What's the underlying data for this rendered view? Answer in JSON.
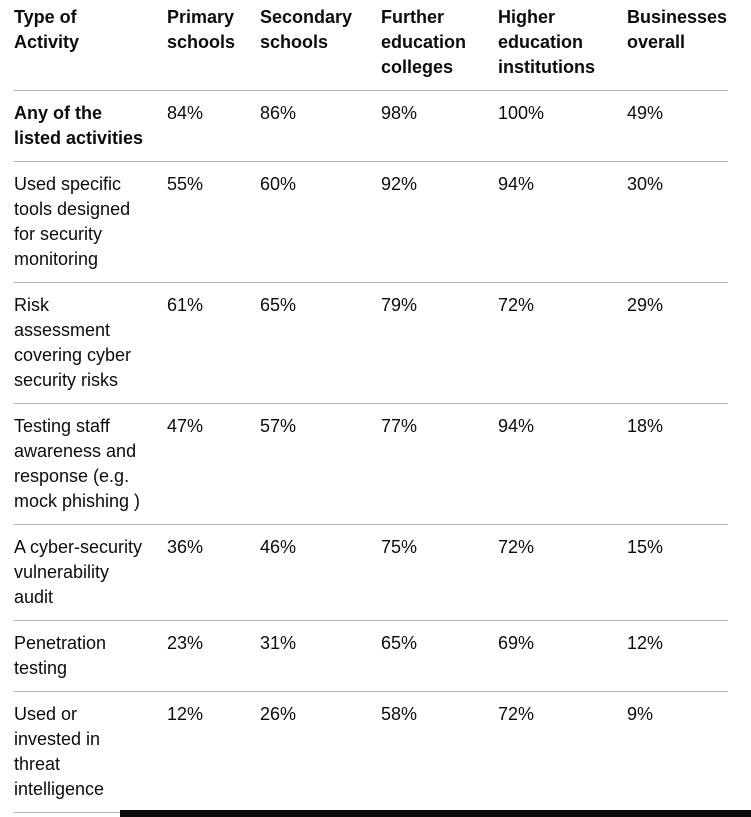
{
  "colors": {
    "text": "#0b0c0c",
    "border": "#b1b4b6",
    "background": "#ffffff",
    "bottom_bar": "#0b0c0c"
  },
  "table": {
    "columns": [
      {
        "label": "Type of\nActivity"
      },
      {
        "label": "Primary\nschools"
      },
      {
        "label": "Secondary\nschools"
      },
      {
        "label": "Further\neducation\ncolleges"
      },
      {
        "label": "Higher\neducation\ninstitutions"
      },
      {
        "label": "Businesses\noverall"
      }
    ],
    "rows": [
      {
        "label": "Any of the\nlisted activities",
        "bold": true,
        "values": [
          "84%",
          "86%",
          "98%",
          "100%",
          "49%"
        ]
      },
      {
        "label": "Used specific\ntools designed\nfor security\nmonitoring",
        "bold": false,
        "values": [
          "55%",
          "60%",
          "92%",
          "94%",
          "30%"
        ]
      },
      {
        "label": "Risk\nassessment\ncovering cyber\nsecurity risks",
        "bold": false,
        "values": [
          "61%",
          "65%",
          "79%",
          "72%",
          "29%"
        ]
      },
      {
        "label": "Testing staff\nawareness and\nresponse (e.g.\nmock phishing )",
        "bold": false,
        "values": [
          "47%",
          "57%",
          "77%",
          "94%",
          "18%"
        ]
      },
      {
        "label": "A cyber-security\nvulnerability\naudit",
        "bold": false,
        "values": [
          "36%",
          "46%",
          "75%",
          "72%",
          "15%"
        ]
      },
      {
        "label": "Penetration\ntesting",
        "bold": false,
        "values": [
          "23%",
          "31%",
          "65%",
          "69%",
          "12%"
        ]
      },
      {
        "label": "Used or\ninvested in\nthreat\nintelligence",
        "bold": false,
        "values": [
          "12%",
          "26%",
          "58%",
          "72%",
          "9%"
        ]
      }
    ]
  }
}
